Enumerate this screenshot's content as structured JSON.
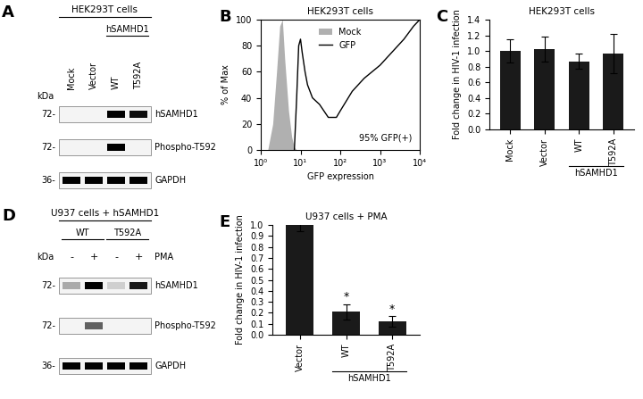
{
  "chart_data": [
    {
      "panel": "B",
      "type": "line",
      "title": "HEK293T cells",
      "x_label": "GFP expression",
      "y_label": "% of Max",
      "log": "x",
      "xlim": [
        1,
        10000
      ],
      "xticks": [
        {
          "value": 1,
          "label": "10⁰"
        },
        {
          "value": 10,
          "label": "10¹"
        },
        {
          "value": 100,
          "label": "10²"
        },
        {
          "value": 1000,
          "label": "10³"
        },
        {
          "value": 10000,
          "label": "10⁴"
        }
      ],
      "ylim": [
        0,
        100
      ],
      "yticks": [
        0,
        20,
        40,
        60,
        80,
        100
      ],
      "legend": "upper center",
      "annotation": "95% GFP(+)",
      "series": [
        {
          "name": "Mock",
          "type": "area",
          "color": "#b0b0b0",
          "x": [
            1.5,
            2,
            2.5,
            3,
            3.5,
            4,
            5,
            6,
            7,
            8
          ],
          "values": [
            0,
            20,
            60,
            95,
            100,
            70,
            30,
            10,
            2,
            0
          ]
        },
        {
          "name": "GFP",
          "type": "line",
          "color": "#000000",
          "x": [
            7,
            8,
            9,
            10,
            11,
            13,
            15,
            20,
            30,
            50,
            80,
            100,
            200,
            400,
            1000,
            2000,
            4000,
            7000,
            10000
          ],
          "values": [
            0,
            40,
            80,
            85,
            75,
            60,
            50,
            40,
            35,
            25,
            25,
            30,
            45,
            55,
            65,
            75,
            85,
            95,
            100
          ]
        }
      ]
    },
    {
      "panel": "C",
      "type": "bar",
      "title": "HEK293T cells",
      "y_label": "Fold change in HIV-1 infection",
      "categories": [
        "Mock",
        "Vector",
        "WT",
        "T592A"
      ],
      "values": [
        1.0,
        1.02,
        0.87,
        0.97
      ],
      "errors": [
        0.15,
        0.16,
        0.1,
        0.25
      ],
      "color": "#1a1a1a",
      "ylim": [
        0.0,
        1.4
      ],
      "yticks": [
        0.0,
        0.2,
        0.4,
        0.6,
        0.8,
        1.0,
        1.2,
        1.4
      ],
      "groups": [
        {
          "label": "hSAMHD1",
          "categories": [
            "WT",
            "T592A"
          ]
        }
      ]
    },
    {
      "panel": "E",
      "type": "bar",
      "title": "U937 cells + PMA",
      "y_label": "Fold change in HIV-1 infection",
      "categories": [
        "Vector",
        "WT",
        "T592A"
      ],
      "values": [
        1.0,
        0.21,
        0.12
      ],
      "errors": [
        0.06,
        0.07,
        0.05
      ],
      "color": "#1a1a1a",
      "ylim": [
        0.0,
        1.0
      ],
      "yticks": [
        0.0,
        0.1,
        0.2,
        0.3,
        0.4,
        0.5,
        0.6,
        0.7,
        0.8,
        0.9,
        1.0
      ],
      "groups": [
        {
          "label": "hSAMHD1",
          "categories": [
            "WT",
            "T592A"
          ]
        }
      ],
      "annotations": [
        {
          "category": "WT",
          "text": "*"
        },
        {
          "category": "T592A",
          "text": "*"
        }
      ]
    }
  ],
  "blots": [
    {
      "panel": "A",
      "header": "HEK293T cells",
      "size_unit": "kDa",
      "lanes": [
        "Mock",
        "Vector",
        "WT",
        "T592A"
      ],
      "groups": [
        {
          "label": "hSAMHD1",
          "lanes": [
            2,
            3
          ]
        }
      ],
      "rows": [
        {
          "name": "hSAMHD1",
          "size_label": "72-",
          "signal": [
            0,
            0,
            1,
            0.95
          ]
        },
        {
          "name": "Phospho-T592",
          "size_label": "72-",
          "signal": [
            0,
            0,
            1,
            0
          ]
        },
        {
          "name": "GAPDH",
          "size_label": "36-",
          "signal": [
            1,
            1,
            1,
            1
          ]
        }
      ]
    },
    {
      "panel": "D",
      "header": "U937 cells + hSAMHD1",
      "size_unit": "kDa",
      "lane_title": "PMA",
      "lanes": [
        "-",
        "+",
        "-",
        "+"
      ],
      "groups": [
        {
          "label": "WT",
          "lanes": [
            0,
            1
          ]
        },
        {
          "label": "T592A",
          "lanes": [
            2,
            3
          ]
        }
      ],
      "rows": [
        {
          "name": "hSAMHD1",
          "size_label": "72-",
          "signal": [
            0.3,
            1,
            0.15,
            0.9
          ]
        },
        {
          "name": "Phospho-T592",
          "size_label": "72-",
          "signal": [
            0,
            0.6,
            0,
            0
          ]
        },
        {
          "name": "GAPDH",
          "size_label": "36-",
          "signal": [
            1,
            1,
            1,
            1
          ]
        }
      ]
    }
  ]
}
